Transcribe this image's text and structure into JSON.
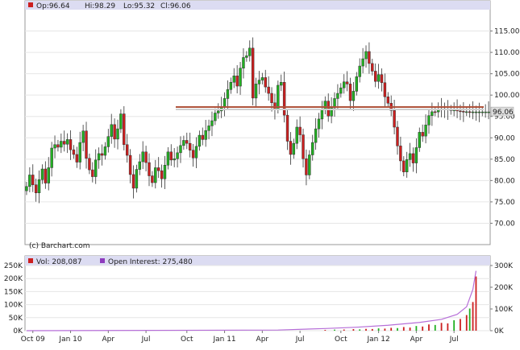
{
  "colors": {
    "up": "#22b022",
    "down": "#cc1f1f",
    "oi_line": "#b66ed8",
    "vol_label_swatch": "#cc1f1f",
    "oi_label_swatch": "#8e3bbd",
    "level_line": "#b0533c",
    "price_badge_bg": "#dddddd",
    "header_bg": "#dcdcf2",
    "grid": "#e6e6e6"
  },
  "chart_data": [
    {
      "type": "candlestick",
      "legend": {
        "op": "Op:96.64",
        "hi": "Hi:98.29",
        "lo": "Lo:95.32",
        "cl": "Cl:96.06"
      },
      "copyright": "(c) Barchart.com",
      "last_price_label": "96.06",
      "horizontal_level": 97.2,
      "ylim": [
        65,
        120
      ],
      "y_ticks": [
        "70.00",
        "75.00",
        "80.00",
        "85.00",
        "90.00",
        "95.00",
        "100.00",
        "105.00",
        "110.00",
        "115.00"
      ],
      "x_ticks": [
        "Oct 09",
        "Jan 10",
        "Apr",
        "Jul",
        "Oct",
        "Jan 11",
        "Apr",
        "Jul",
        "Oct",
        "Jan 12",
        "Apr",
        "Jul"
      ],
      "x_tick_index": [
        2,
        14,
        26,
        38,
        51,
        63,
        75,
        87,
        100,
        112,
        124,
        136
      ],
      "n_periods": 148,
      "closes": [
        78.6,
        81.3,
        79.0,
        77.1,
        80.2,
        82.7,
        79.4,
        83.0,
        87.6,
        88.4,
        87.8,
        89.2,
        88.5,
        89.6,
        87.2,
        86.1,
        84.3,
        88.9,
        91.6,
        85.2,
        82.5,
        80.9,
        84.8,
        86.3,
        85.9,
        87.9,
        90.3,
        93.1,
        89.7,
        92.1,
        95.6,
        88.4,
        85.9,
        81.4,
        78.2,
        82.6,
        84.4,
        86.7,
        84.2,
        81.1,
        79.5,
        83.0,
        82.3,
        80.4,
        83.6,
        86.7,
        84.8,
        85.1,
        86.5,
        88.2,
        89.4,
        88.7,
        87.1,
        85.3,
        88.0,
        90.6,
        89.6,
        91.7,
        92.8,
        94.0,
        95.8,
        96.3,
        97.1,
        99.2,
        101.3,
        103.0,
        104.5,
        102.1,
        106.3,
        108.8,
        109.2,
        111.0,
        99.3,
        102.6,
        103.5,
        104.1,
        101.9,
        100.4,
        98.2,
        96.7,
        102.3,
        103.0,
        95.3,
        89.2,
        86.1,
        88.7,
        92.5,
        90.7,
        85.1,
        81.3,
        86.0,
        88.9,
        92.1,
        94.4,
        96.5,
        98.6,
        95.1,
        97.0,
        99.2,
        100.4,
        101.7,
        103.1,
        102.6,
        98.7,
        100.9,
        104.3,
        106.8,
        108.5,
        110.2,
        107.4,
        105.6,
        103.2,
        104.8,
        102.9,
        99.6,
        98.1,
        96.4,
        92.5,
        88.1,
        84.6,
        82.0,
        84.9,
        86.3,
        84.1,
        87.7,
        91.3,
        90.4,
        93.0,
        95.2,
        96.1,
        96.06,
        96.5,
        96.8,
        96.7,
        96.6,
        96.4,
        96.5,
        96.3,
        96.2,
        96.1,
        96.1,
        96.06,
        96.06,
        96.06,
        96.06,
        96.06,
        96.06,
        96.06
      ]
    },
    {
      "type": "bar+line",
      "legend_volume": "Vol: 208,087",
      "legend_oi": "Open Interest: 275,480",
      "volume_ylim": [
        0,
        250000
      ],
      "oi_ylim": [
        0,
        300000
      ],
      "y_ticks_left": [
        "0K",
        "50K",
        "100K",
        "150K",
        "200K",
        "250K"
      ],
      "y_ticks_right": [
        "0K",
        "100K",
        "200K",
        "300K"
      ],
      "x_ticks": [
        "Oct 09",
        "Jan 10",
        "Apr",
        "Jul",
        "Oct",
        "Jan 11",
        "Apr",
        "Jul",
        "Oct",
        "Jan 12",
        "Apr",
        "Jul"
      ],
      "volume_bars": [
        {
          "i": 95,
          "v": 3000
        },
        {
          "i": 98,
          "v": 4000
        },
        {
          "i": 101,
          "v": 4500
        },
        {
          "i": 104,
          "v": 6000
        },
        {
          "i": 106,
          "v": 5000
        },
        {
          "i": 108,
          "v": 7000
        },
        {
          "i": 110,
          "v": 6500
        },
        {
          "i": 112,
          "v": 9000
        },
        {
          "i": 114,
          "v": 8000
        },
        {
          "i": 116,
          "v": 11000
        },
        {
          "i": 118,
          "v": 10000
        },
        {
          "i": 120,
          "v": 14000
        },
        {
          "i": 122,
          "v": 12000
        },
        {
          "i": 124,
          "v": 18000
        },
        {
          "i": 126,
          "v": 16000
        },
        {
          "i": 128,
          "v": 24000
        },
        {
          "i": 130,
          "v": 22000
        },
        {
          "i": 132,
          "v": 30000
        },
        {
          "i": 134,
          "v": 28000
        },
        {
          "i": 136,
          "v": 40000
        },
        {
          "i": 138,
          "v": 45000
        },
        {
          "i": 140,
          "v": 60000
        },
        {
          "i": 141,
          "v": 85000
        },
        {
          "i": 142,
          "v": 110000
        },
        {
          "i": 143,
          "v": 208087
        }
      ],
      "open_interest": [
        {
          "i": 0,
          "v": 0
        },
        {
          "i": 80,
          "v": 3000
        },
        {
          "i": 95,
          "v": 10000
        },
        {
          "i": 105,
          "v": 16000
        },
        {
          "i": 115,
          "v": 25000
        },
        {
          "i": 125,
          "v": 38000
        },
        {
          "i": 132,
          "v": 52000
        },
        {
          "i": 137,
          "v": 75000
        },
        {
          "i": 140,
          "v": 110000
        },
        {
          "i": 142,
          "v": 190000
        },
        {
          "i": 143,
          "v": 275480
        }
      ]
    }
  ]
}
